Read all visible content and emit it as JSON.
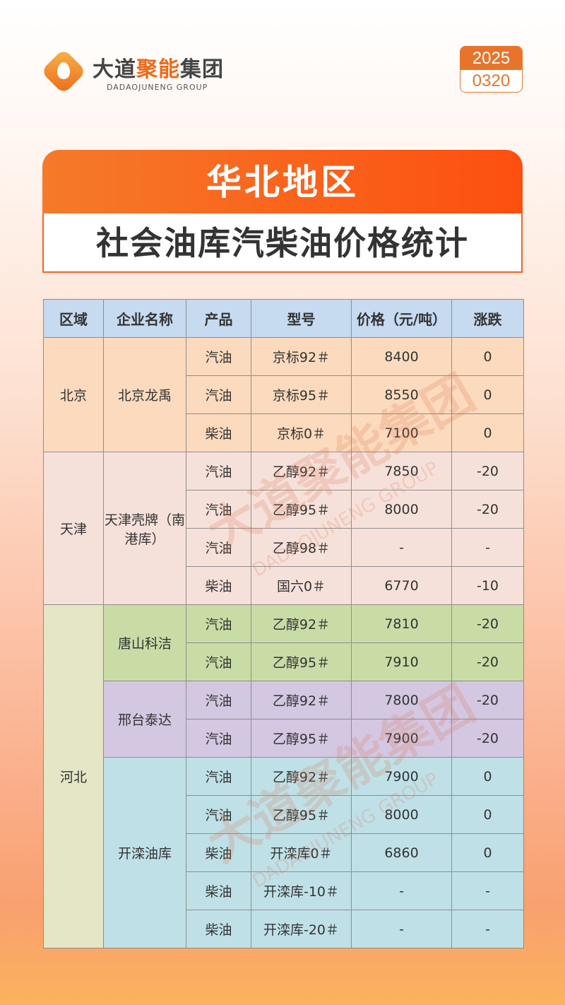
{
  "brand": {
    "name_dark1": "大道",
    "name_orange": "聚能",
    "name_dark2": "集团",
    "name_en": "DADAOJUNENG GROUP"
  },
  "date": {
    "year": "2025",
    "day": "0320"
  },
  "title": "华北地区",
  "subtitle": "社会油库汽柴油价格统计",
  "table": {
    "headers": [
      "区域",
      "企业名称",
      "产品",
      "型号",
      "价格（元/吨）",
      "涨跌"
    ],
    "rows": [
      {
        "region": "北京",
        "company": "北京龙禹",
        "product": "汽油",
        "model": "京标92＃",
        "price": "8400",
        "change": "0"
      },
      {
        "region": "北京",
        "company": "北京龙禹",
        "product": "汽油",
        "model": "京标95＃",
        "price": "8550",
        "change": "0"
      },
      {
        "region": "北京",
        "company": "北京龙禹",
        "product": "柴油",
        "model": "京标0＃",
        "price": "7100",
        "change": "0"
      },
      {
        "region": "天津",
        "company": "天津壳牌（南港库）",
        "product": "汽油",
        "model": "乙醇92＃",
        "price": "7850",
        "change": "-20"
      },
      {
        "region": "天津",
        "company": "天津壳牌（南港库）",
        "product": "汽油",
        "model": "乙醇95＃",
        "price": "8000",
        "change": "-20"
      },
      {
        "region": "天津",
        "company": "天津壳牌（南港库）",
        "product": "汽油",
        "model": "乙醇98＃",
        "price": "-",
        "change": "-"
      },
      {
        "region": "天津",
        "company": "天津壳牌（南港库）",
        "product": "柴油",
        "model": "国六0＃",
        "price": "6770",
        "change": "-10"
      },
      {
        "region": "河北",
        "company": "唐山科洁",
        "product": "汽油",
        "model": "乙醇92＃",
        "price": "7810",
        "change": "-20"
      },
      {
        "region": "河北",
        "company": "唐山科洁",
        "product": "汽油",
        "model": "乙醇95＃",
        "price": "7910",
        "change": "-20"
      },
      {
        "region": "河北",
        "company": "邢台泰达",
        "product": "汽油",
        "model": "乙醇92＃",
        "price": "7800",
        "change": "-20"
      },
      {
        "region": "河北",
        "company": "邢台泰达",
        "product": "汽油",
        "model": "乙醇95＃",
        "price": "7900",
        "change": "-20"
      },
      {
        "region": "河北",
        "company": "开滦油库",
        "product": "汽油",
        "model": "乙醇92＃",
        "price": "7900",
        "change": "0"
      },
      {
        "region": "河北",
        "company": "开滦油库",
        "product": "汽油",
        "model": "乙醇95＃",
        "price": "8000",
        "change": "0"
      },
      {
        "region": "河北",
        "company": "开滦油库",
        "product": "柴油",
        "model": "开滦库0＃",
        "price": "6860",
        "change": "0"
      },
      {
        "region": "河北",
        "company": "开滦油库",
        "product": "柴油",
        "model": "开滦库-10＃",
        "price": "-",
        "change": "-"
      },
      {
        "region": "河北",
        "company": "开滦油库",
        "product": "柴油",
        "model": "开滦库-20＃",
        "price": "-",
        "change": "-"
      }
    ]
  },
  "colors": {
    "header": "#c6daf0",
    "北京": "#fcdabd",
    "天津": "#f6e1da",
    "河北": "#e4e6c6",
    "唐山科洁": "#c9dca6",
    "邢台泰达": "#d4c7e2",
    "开滦油库": "#bfe0e7",
    "accent": "#f0622a"
  },
  "watermark": {
    "cn": "大道聚能集团",
    "en": "DADAOJUNENG GROUP"
  }
}
